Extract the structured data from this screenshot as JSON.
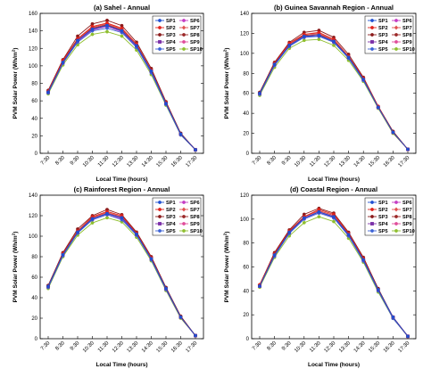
{
  "chart_data": [
    {
      "type": "line",
      "title": "(a) Sahel - Annual",
      "xlabel": "Local Time (hours)",
      "ylabel": "PVM Solar Power (Wh/m",
      "ylabel_sup": "2",
      "ylabel_close": ")",
      "ylim": [
        0,
        160
      ],
      "yticks": [
        "0",
        "20",
        "40",
        "60",
        "80",
        "100",
        "120",
        "140",
        "160"
      ],
      "categories": [
        "7:30",
        "8:30",
        "9:30",
        "10:30",
        "11:30",
        "12:30",
        "13:30",
        "14:30",
        "15:30",
        "16:30",
        "17:30"
      ],
      "series": [
        {
          "name": "SP1",
          "values": [
            70,
            104,
            129,
            142,
            146,
            140,
            123,
            94,
            57,
            22,
            4
          ]
        },
        {
          "name": "SP2",
          "values": [
            71,
            106,
            131,
            145,
            149,
            143,
            125,
            95,
            58,
            22,
            4
          ]
        },
        {
          "name": "SP3",
          "values": [
            72,
            107,
            134,
            148,
            152,
            146,
            127,
            97,
            59,
            23,
            4
          ]
        },
        {
          "name": "SP4",
          "values": [
            70,
            104,
            129,
            142,
            146,
            140,
            123,
            94,
            57,
            22,
            4
          ]
        },
        {
          "name": "SP5",
          "values": [
            69,
            103,
            127,
            140,
            143,
            138,
            121,
            92,
            56,
            21,
            4
          ]
        },
        {
          "name": "SP6",
          "values": [
            70,
            103,
            128,
            141,
            145,
            139,
            122,
            93,
            57,
            22,
            4
          ]
        },
        {
          "name": "SP7",
          "values": [
            71,
            105,
            130,
            144,
            148,
            142,
            124,
            95,
            58,
            22,
            4
          ]
        },
        {
          "name": "SP8",
          "values": [
            71,
            105,
            130,
            143,
            147,
            141,
            124,
            94,
            57,
            22,
            4
          ]
        },
        {
          "name": "SP9",
          "values": [
            70,
            104,
            129,
            142,
            146,
            140,
            123,
            94,
            57,
            22,
            4
          ]
        },
        {
          "name": "SP10",
          "values": [
            68,
            101,
            124,
            136,
            139,
            134,
            118,
            90,
            55,
            21,
            4
          ]
        }
      ],
      "legend": "top-right"
    },
    {
      "type": "line",
      "title": "(b) Guinea Savannah Region - Annual",
      "xlabel": "Local Time (hours)",
      "ylabel": "PVM Solar Power (Wh/m",
      "ylabel_sup": "2",
      "ylabel_close": ")",
      "ylim": [
        0,
        140
      ],
      "yticks": [
        "0",
        "20",
        "40",
        "60",
        "80",
        "100",
        "120",
        "140"
      ],
      "categories": [
        "7:30",
        "8:30",
        "9:30",
        "10:30",
        "11:30",
        "12:30",
        "13:30",
        "14:30",
        "15:30",
        "16:30",
        "17:30"
      ],
      "series": [
        {
          "name": "SP1",
          "values": [
            60,
            89,
            108,
            117,
            118,
            112,
            96,
            74,
            46,
            21,
            4
          ]
        },
        {
          "name": "SP2",
          "values": [
            60,
            90,
            110,
            119,
            121,
            114,
            97,
            75,
            47,
            21,
            4
          ]
        },
        {
          "name": "SP3",
          "values": [
            61,
            91,
            111,
            121,
            123,
            116,
            99,
            76,
            47,
            22,
            4
          ]
        },
        {
          "name": "SP4",
          "values": [
            60,
            89,
            108,
            117,
            118,
            112,
            96,
            74,
            46,
            21,
            4
          ]
        },
        {
          "name": "SP5",
          "values": [
            59,
            88,
            107,
            116,
            117,
            111,
            95,
            73,
            46,
            21,
            4
          ]
        },
        {
          "name": "SP6",
          "values": [
            60,
            88,
            108,
            116,
            118,
            111,
            96,
            74,
            46,
            21,
            4
          ]
        },
        {
          "name": "SP7",
          "values": [
            60,
            90,
            109,
            119,
            120,
            113,
            97,
            75,
            46,
            21,
            4
          ]
        },
        {
          "name": "SP8",
          "values": [
            60,
            89,
            109,
            118,
            119,
            113,
            97,
            74,
            46,
            21,
            4
          ]
        },
        {
          "name": "SP9",
          "values": [
            60,
            89,
            108,
            117,
            118,
            112,
            96,
            74,
            46,
            21,
            4
          ]
        },
        {
          "name": "SP10",
          "values": [
            58,
            86,
            105,
            113,
            114,
            108,
            93,
            72,
            45,
            20,
            4
          ]
        }
      ],
      "legend": "top-right"
    },
    {
      "type": "line",
      "title": "(c) Rainforest Region - Annual",
      "xlabel": "Local Time (hours)",
      "ylabel": "PVM Solar Power (Wh/m",
      "ylabel_sup": "2",
      "ylabel_close": ")",
      "ylim": [
        0,
        140
      ],
      "yticks": [
        "0",
        "20",
        "40",
        "60",
        "80",
        "100",
        "120",
        "140"
      ],
      "categories": [
        "7:30",
        "8:30",
        "9:30",
        "10:30",
        "11:30",
        "12:30",
        "13:30",
        "14:30",
        "15:30",
        "16:30",
        "17:30"
      ],
      "series": [
        {
          "name": "SP1",
          "values": [
            51,
            82,
            104,
            117,
            122,
            118,
            102,
            78,
            49,
            21,
            3
          ]
        },
        {
          "name": "SP2",
          "values": [
            51,
            83,
            105,
            119,
            124,
            120,
            103,
            79,
            49,
            21,
            3
          ]
        },
        {
          "name": "SP3",
          "values": [
            52,
            84,
            107,
            120,
            126,
            121,
            104,
            80,
            50,
            22,
            3
          ]
        },
        {
          "name": "SP4",
          "values": [
            51,
            82,
            104,
            117,
            122,
            118,
            102,
            78,
            49,
            21,
            3
          ]
        },
        {
          "name": "SP5",
          "values": [
            50,
            81,
            103,
            116,
            121,
            116,
            101,
            77,
            48,
            21,
            3
          ]
        },
        {
          "name": "SP6",
          "values": [
            51,
            82,
            104,
            116,
            121,
            117,
            101,
            78,
            48,
            21,
            3
          ]
        },
        {
          "name": "SP7",
          "values": [
            51,
            83,
            105,
            118,
            123,
            119,
            103,
            79,
            49,
            21,
            3
          ]
        },
        {
          "name": "SP8",
          "values": [
            51,
            83,
            105,
            118,
            123,
            118,
            102,
            78,
            49,
            21,
            3
          ]
        },
        {
          "name": "SP9",
          "values": [
            51,
            82,
            104,
            117,
            122,
            118,
            102,
            78,
            49,
            21,
            3
          ]
        },
        {
          "name": "SP10",
          "values": [
            49,
            80,
            101,
            113,
            118,
            114,
            99,
            76,
            47,
            20,
            3
          ]
        }
      ],
      "legend": "top-right"
    },
    {
      "type": "line",
      "title": "(d) Coastal Region - Annual",
      "xlabel": "Local Time (hours)",
      "ylabel": "PVM Solar Power (Wh/m",
      "ylabel_sup": "2",
      "ylabel_close": ")",
      "ylim": [
        0,
        120
      ],
      "yticks": [
        "0",
        "20",
        "40",
        "60",
        "80",
        "100",
        "120"
      ],
      "categories": [
        "7:30",
        "8:30",
        "9:30",
        "10:30",
        "11:30",
        "12:30",
        "13:30",
        "14:30",
        "15:30",
        "16:30",
        "17:30"
      ],
      "series": [
        {
          "name": "SP1",
          "values": [
            44,
            70,
            89,
            101,
            106,
            102,
            87,
            66,
            41,
            18,
            2
          ]
        },
        {
          "name": "SP2",
          "values": [
            45,
            71,
            90,
            102,
            108,
            104,
            88,
            67,
            41,
            18,
            2
          ]
        },
        {
          "name": "SP3",
          "values": [
            45,
            72,
            91,
            104,
            109,
            105,
            89,
            68,
            42,
            18,
            2
          ]
        },
        {
          "name": "SP4",
          "values": [
            44,
            70,
            89,
            101,
            106,
            102,
            87,
            66,
            41,
            18,
            2
          ]
        },
        {
          "name": "SP5",
          "values": [
            44,
            69,
            88,
            100,
            105,
            101,
            86,
            65,
            40,
            17,
            2
          ]
        },
        {
          "name": "SP6",
          "values": [
            44,
            70,
            89,
            100,
            106,
            101,
            86,
            66,
            41,
            18,
            2
          ]
        },
        {
          "name": "SP7",
          "values": [
            45,
            71,
            90,
            102,
            107,
            103,
            88,
            67,
            41,
            18,
            2
          ]
        },
        {
          "name": "SP8",
          "values": [
            45,
            71,
            90,
            102,
            107,
            103,
            87,
            66,
            41,
            18,
            2
          ]
        },
        {
          "name": "SP9",
          "values": [
            44,
            70,
            89,
            101,
            106,
            102,
            87,
            66,
            41,
            18,
            2
          ]
        },
        {
          "name": "SP10",
          "values": [
            43,
            68,
            86,
            97,
            102,
            98,
            84,
            64,
            39,
            17,
            2
          ]
        }
      ],
      "legend": "top-right"
    }
  ],
  "series_styles": [
    {
      "name": "SP1",
      "color": "#1f4fd1",
      "marker": "circle"
    },
    {
      "name": "SP2",
      "color": "#e0221b",
      "marker": "circle"
    },
    {
      "name": "SP3",
      "color": "#8b1a1a",
      "marker": "circle"
    },
    {
      "name": "SP4",
      "color": "#7b2fa8",
      "marker": "square"
    },
    {
      "name": "SP5",
      "color": "#3b62d6",
      "marker": "circle"
    },
    {
      "name": "SP6",
      "color": "#c43cc4",
      "marker": "circle"
    },
    {
      "name": "SP7",
      "color": "#e05050",
      "marker": "diamond"
    },
    {
      "name": "SP8",
      "color": "#9b2727",
      "marker": "circle"
    },
    {
      "name": "SP9",
      "color": "#e04c9a",
      "marker": "circle"
    },
    {
      "name": "SP10",
      "color": "#8fbf2f",
      "marker": "circle"
    }
  ]
}
